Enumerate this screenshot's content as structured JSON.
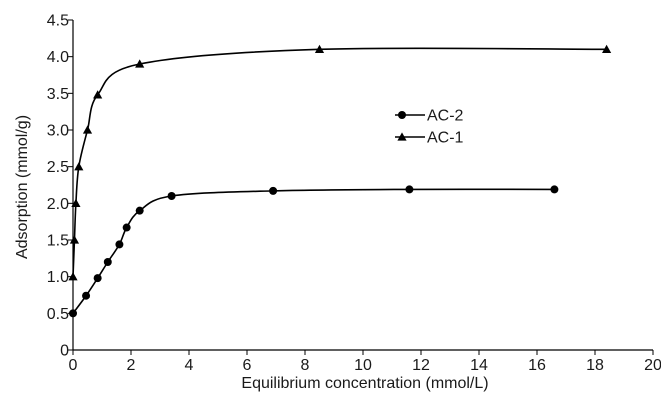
{
  "chart_data": {
    "type": "line",
    "title": "",
    "xlabel": "Equilibrium concentration (mmol/L)",
    "ylabel": "Adsorption (mmol/g)",
    "xlim": [
      0,
      20
    ],
    "ylim": [
      0,
      4.5
    ],
    "x_ticks": [
      "0",
      "2",
      "4",
      "6",
      "8",
      "10",
      "12",
      "14",
      "16",
      "18",
      "20"
    ],
    "y_ticks": [
      "0",
      "0.5",
      "1.0",
      "1.5",
      "2.0",
      "2.5",
      "3.0",
      "3.5",
      "4.0",
      "4.5"
    ],
    "grid": false,
    "legend_position": "center-right",
    "series": [
      {
        "name": "AC-2",
        "marker": "circle",
        "color": "#000000",
        "x": [
          0.0,
          0.45,
          0.85,
          1.2,
          1.6,
          1.85,
          2.3,
          3.4,
          6.9,
          11.6,
          16.6
        ],
        "y": [
          0.5,
          0.74,
          0.98,
          1.2,
          1.44,
          1.67,
          1.9,
          2.1,
          2.17,
          2.19,
          2.19
        ]
      },
      {
        "name": "AC-1",
        "marker": "triangle",
        "color": "#000000",
        "x": [
          0.0,
          0.05,
          0.1,
          0.2,
          0.5,
          0.85,
          2.3,
          8.5,
          18.4
        ],
        "y": [
          1.0,
          1.5,
          2.0,
          2.5,
          3.0,
          3.48,
          3.9,
          4.1,
          4.1
        ]
      }
    ]
  }
}
